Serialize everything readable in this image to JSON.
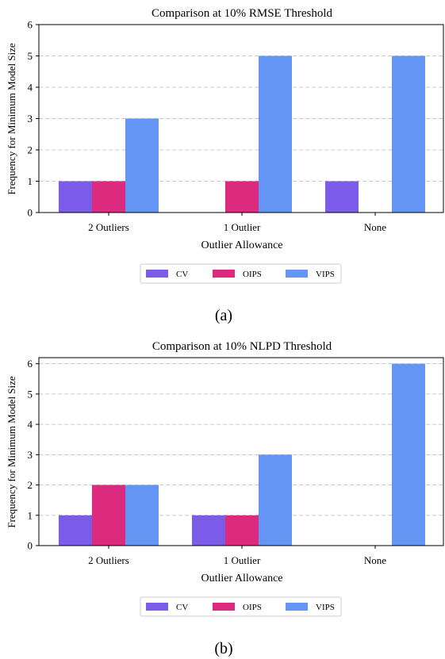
{
  "chart_data": [
    {
      "type": "bar",
      "title": "Comparison at 10% RMSE Threshold",
      "xlabel": "Outlier Allowance",
      "ylabel": "Frequency for Minimum Model Size",
      "categories": [
        "2 Outliers",
        "1 Outlier",
        "None"
      ],
      "ylim": [
        0,
        6
      ],
      "yticks": [
        "0",
        "1",
        "2",
        "3",
        "4",
        "5",
        "6"
      ],
      "grid": true,
      "legend_position": "bottom-center",
      "series": [
        {
          "name": "CV",
          "color": "#7b5ce8",
          "values": [
            1,
            0,
            1
          ]
        },
        {
          "name": "OIPS",
          "color": "#dc2a7e",
          "values": [
            1,
            1,
            0
          ]
        },
        {
          "name": "VIPS",
          "color": "#6495f5",
          "values": [
            3,
            5,
            5
          ]
        }
      ],
      "caption": "(a)"
    },
    {
      "type": "bar",
      "title": "Comparison at 10% NLPD Threshold",
      "xlabel": "Outlier Allowance",
      "ylabel": "Frequency for Minimum Model Size",
      "categories": [
        "2 Outliers",
        "1 Outlier",
        "None"
      ],
      "ylim": [
        0,
        6.2
      ],
      "yticks": [
        "0",
        "1",
        "2",
        "3",
        "4",
        "5",
        "6"
      ],
      "grid": true,
      "legend_position": "bottom-center",
      "series": [
        {
          "name": "CV",
          "color": "#7b5ce8",
          "values": [
            1,
            1,
            0
          ]
        },
        {
          "name": "OIPS",
          "color": "#dc2a7e",
          "values": [
            2,
            1,
            0
          ]
        },
        {
          "name": "VIPS",
          "color": "#6495f5",
          "values": [
            2,
            3,
            6
          ]
        }
      ],
      "caption": "(b)"
    }
  ]
}
